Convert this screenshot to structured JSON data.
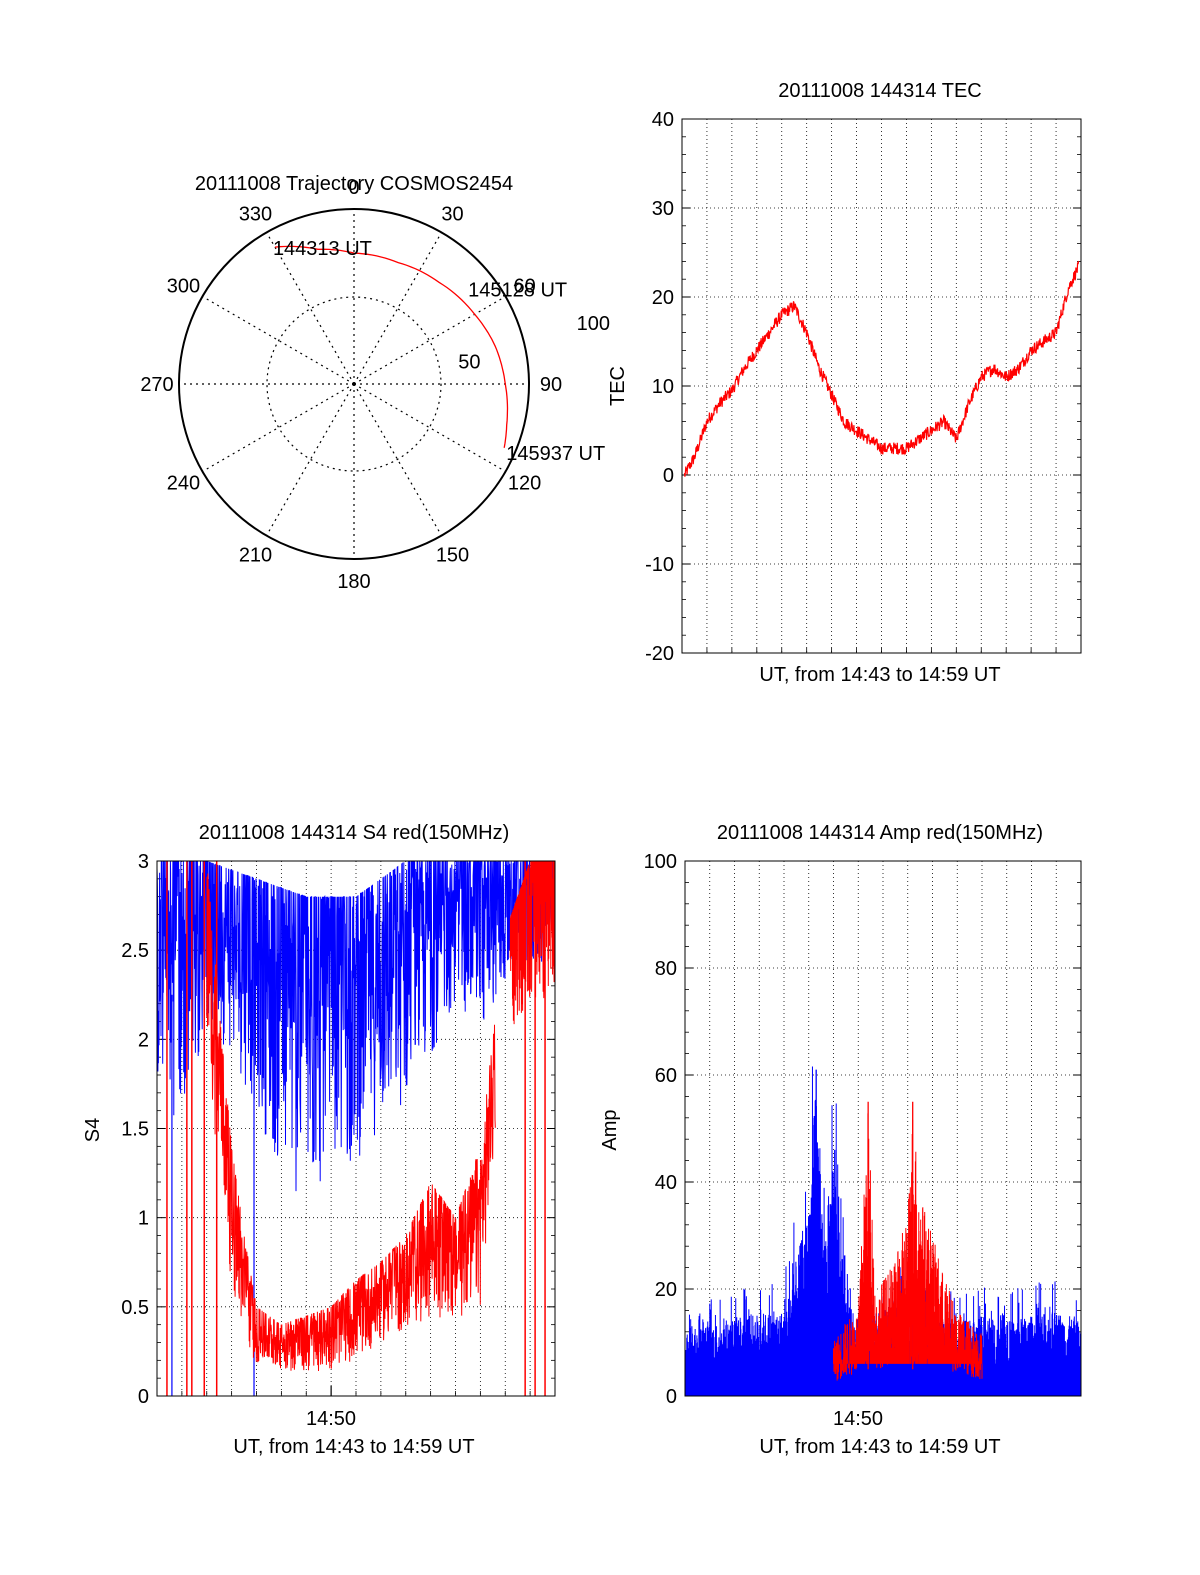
{
  "chart_data": [
    {
      "type": "polar",
      "title": "20111008 Trajectory COSMOS2454",
      "azimuth_labels": [
        "0",
        "30",
        "60",
        "90",
        "120",
        "150",
        "180",
        "210",
        "240",
        "270",
        "300",
        "330"
      ],
      "radial_labels": [
        "50",
        "100"
      ],
      "grid": true,
      "series": [
        {
          "color": "#ff0000",
          "points": [
            {
              "az": 330,
              "r": 93
            },
            {
              "az": 345,
              "r": 82
            },
            {
              "az": 0,
              "r": 77
            },
            {
              "az": 20,
              "r": 76
            },
            {
              "az": 40,
              "r": 78
            },
            {
              "az": 60,
              "r": 82
            },
            {
              "az": 75,
              "r": 86
            },
            {
              "az": 90,
              "r": 89
            },
            {
              "az": 105,
              "r": 93
            },
            {
              "az": 113,
              "r": 96
            }
          ]
        }
      ],
      "annotations": [
        {
          "text": "144313 UT",
          "az": 330,
          "r": 93
        },
        {
          "text": "145128 UT",
          "az": 50,
          "r": 80
        },
        {
          "text": "145937 UT",
          "az": 113,
          "r": 96
        }
      ]
    },
    {
      "type": "line",
      "title": "20111008 144314 TEC",
      "xlabel": "UT, from 14:43 to 14:59 UT",
      "ylabel": "TEC",
      "xlim": [
        0,
        16
      ],
      "ylim": [
        -20,
        40
      ],
      "yticks": [
        "-20",
        "-10",
        "0",
        "10",
        "20",
        "30",
        "40"
      ],
      "grid": true,
      "series": [
        {
          "color": "#ff0000",
          "x": [
            0.1,
            0.5,
            1.0,
            1.5,
            2.0,
            2.5,
            3.0,
            3.5,
            4.0,
            4.5,
            5.0,
            5.5,
            6.0,
            6.5,
            7.0,
            7.5,
            8.0,
            8.5,
            9.0,
            9.5,
            10.0,
            10.5,
            11.0,
            11.5,
            12.0,
            12.5,
            13.0,
            13.5,
            14.0,
            14.5,
            15.0,
            15.5,
            16.0
          ],
          "y": [
            0,
            2,
            6,
            8,
            9.5,
            12,
            14,
            16,
            18,
            19,
            16,
            12,
            9,
            6,
            5,
            4,
            3,
            3,
            3,
            4,
            5,
            6,
            4,
            8,
            11,
            12,
            11,
            12,
            14,
            15,
            16,
            21,
            24
          ]
        }
      ]
    },
    {
      "type": "line",
      "title": "20111008 144314 S4 red(150MHz)",
      "xlabel": "UT, from 14:43 to 14:59 UT",
      "ylabel": "S4",
      "xlim": [
        0,
        16
      ],
      "ylim": [
        0,
        3
      ],
      "xticks": [
        {
          "x": 7,
          "label": "14:50"
        }
      ],
      "yticks": [
        "0",
        "0.5",
        "1",
        "1.5",
        "2",
        "2.5",
        "3"
      ],
      "grid": true,
      "series": [
        {
          "color": "#0000ff",
          "envelope_upper": [
            [
              0,
              3
            ],
            [
              2,
              3
            ],
            [
              4,
              2.9
            ],
            [
              6,
              2.8
            ],
            [
              8,
              2.8
            ],
            [
              10,
              3
            ],
            [
              12,
              3
            ],
            [
              14,
              3
            ],
            [
              16,
              3
            ]
          ],
          "envelope_lower": [
            [
              0,
              1.7
            ],
            [
              1,
              1.5
            ],
            [
              2,
              2.1
            ],
            [
              3,
              1.9
            ],
            [
              4,
              1.6
            ],
            [
              5,
              1.2
            ],
            [
              6,
              1.0
            ],
            [
              7,
              1.2
            ],
            [
              8,
              1.3
            ],
            [
              9,
              1.5
            ],
            [
              10,
              1.6
            ],
            [
              11,
              1.9
            ],
            [
              12,
              2.2
            ],
            [
              13,
              2.0
            ],
            [
              14,
              2.3
            ],
            [
              15,
              2.4
            ],
            [
              16,
              2.4
            ]
          ]
        },
        {
          "color": "#ff0000",
          "envelope_upper": [
            [
              0,
              3
            ],
            [
              1,
              3
            ],
            [
              2,
              3
            ],
            [
              2.6,
              2.0
            ],
            [
              3,
              1.4
            ],
            [
              3.5,
              0.9
            ],
            [
              4,
              0.5
            ],
            [
              5,
              0.4
            ],
            [
              6,
              0.45
            ],
            [
              7,
              0.5
            ],
            [
              8,
              0.65
            ],
            [
              9,
              0.75
            ],
            [
              10,
              0.9
            ],
            [
              11,
              1.2
            ],
            [
              12,
              1.0
            ],
            [
              13,
              1.4
            ],
            [
              14,
              2.6
            ],
            [
              15,
              3
            ],
            [
              16,
              3
            ]
          ],
          "envelope_lower": [
            [
              0,
              2.3
            ],
            [
              1,
              2.1
            ],
            [
              2,
              1.8
            ],
            [
              2.6,
              1.2
            ],
            [
              3,
              0.6
            ],
            [
              3.5,
              0.3
            ],
            [
              4,
              0.17
            ],
            [
              5,
              0.15
            ],
            [
              6,
              0.12
            ],
            [
              7,
              0.15
            ],
            [
              8,
              0.2
            ],
            [
              9,
              0.3
            ],
            [
              10,
              0.35
            ],
            [
              11,
              0.45
            ],
            [
              12,
              0.4
            ],
            [
              13,
              0.5
            ],
            [
              14,
              2.0
            ],
            [
              15,
              2.2
            ],
            [
              16,
              2.2
            ]
          ]
        }
      ]
    },
    {
      "type": "line",
      "title": "20111008 144314 Amp red(150MHz)",
      "xlabel": "UT, from 14:43 to 14:59 UT",
      "ylabel": "Amp",
      "xlim": [
        0,
        16
      ],
      "ylim": [
        0,
        100
      ],
      "xticks": [
        {
          "x": 7,
          "label": "14:50"
        }
      ],
      "yticks": [
        "0",
        "20",
        "40",
        "60",
        "80",
        "100"
      ],
      "grid": true,
      "series": [
        {
          "color": "#0000ff",
          "envelope_upper": [
            [
              0,
              12
            ],
            [
              2,
              15
            ],
            [
              4,
              16
            ],
            [
              5,
              35
            ],
            [
              5.3,
              60
            ],
            [
              5.6,
              30
            ],
            [
              6,
              45
            ],
            [
              6.5,
              18
            ],
            [
              7,
              14
            ],
            [
              8,
              16
            ],
            [
              9,
              18
            ],
            [
              10,
              15
            ],
            [
              11,
              14
            ],
            [
              12,
              15
            ],
            [
              13,
              14
            ],
            [
              14,
              15
            ],
            [
              15,
              16
            ],
            [
              16,
              14
            ]
          ]
        },
        {
          "color": "#ff0000",
          "envelope_upper": [
            [
              6,
              10
            ],
            [
              6.5,
              14
            ],
            [
              7,
              16
            ],
            [
              7.4,
              55
            ],
            [
              7.7,
              18
            ],
            [
              8,
              22
            ],
            [
              8.5,
              25
            ],
            [
              9,
              35
            ],
            [
              9.2,
              55
            ],
            [
              9.5,
              38
            ],
            [
              10,
              30
            ],
            [
              10.5,
              22
            ],
            [
              11,
              16
            ],
            [
              11.5,
              14
            ],
            [
              12,
              12
            ]
          ]
        }
      ]
    }
  ]
}
